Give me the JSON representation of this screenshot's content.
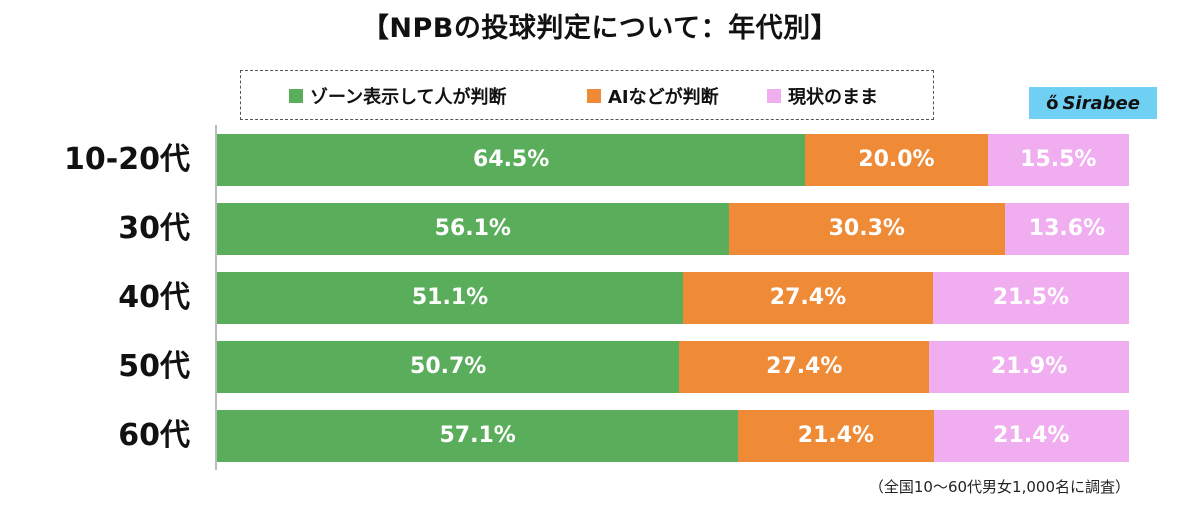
{
  "title": "【NPBの投球判定について：年代別】",
  "logo_text": "Sirabee",
  "footnote": "（全国10〜60代男女1,000名に調査）",
  "chart_data": {
    "type": "bar",
    "orientation": "horizontal",
    "stacked": true,
    "unit": "%",
    "categories": [
      "10-20代",
      "30代",
      "40代",
      "50代",
      "60代"
    ],
    "series": [
      {
        "name": "ゾーン表示して人が判断",
        "color": "#5aae5b",
        "values": [
          64.5,
          56.1,
          51.1,
          50.7,
          57.1
        ]
      },
      {
        "name": "AIなどが判断",
        "color": "#ef8a36",
        "values": [
          20.0,
          30.3,
          27.4,
          27.4,
          21.4
        ]
      },
      {
        "name": "現状のまま",
        "color": "#f0aef1",
        "values": [
          15.5,
          13.6,
          21.5,
          21.9,
          21.4
        ]
      }
    ],
    "xlim": [
      0,
      100
    ],
    "legend_position": "top"
  }
}
